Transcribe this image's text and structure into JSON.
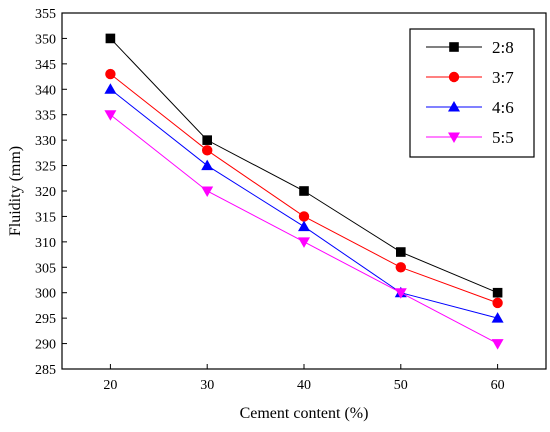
{
  "chart_data": {
    "type": "line",
    "x": [
      20,
      30,
      40,
      50,
      60
    ],
    "xlabel": "Cement content (%)",
    "ylabel": "Fluidity (mm)",
    "xlim": [
      15,
      65
    ],
    "ylim": [
      285,
      355
    ],
    "xticks": [
      20,
      30,
      40,
      50,
      60
    ],
    "yticks": [
      285,
      290,
      295,
      300,
      305,
      310,
      315,
      320,
      325,
      330,
      335,
      340,
      345,
      350,
      355
    ],
    "grid": false,
    "legend_position": "top-right",
    "series": [
      {
        "name": "2:8",
        "values": [
          350,
          330,
          320,
          308,
          300
        ],
        "color": "#000000",
        "marker": "square"
      },
      {
        "name": "3:7",
        "values": [
          343,
          328,
          315,
          305,
          298
        ],
        "color": "#ff0000",
        "marker": "circle"
      },
      {
        "name": "4:6",
        "values": [
          340,
          325,
          313,
          300,
          295
        ],
        "color": "#0000ff",
        "marker": "triangle-up"
      },
      {
        "name": "5:5",
        "values": [
          335,
          320,
          310,
          300,
          290
        ],
        "color": "#ff00ff",
        "marker": "triangle-down"
      }
    ]
  }
}
